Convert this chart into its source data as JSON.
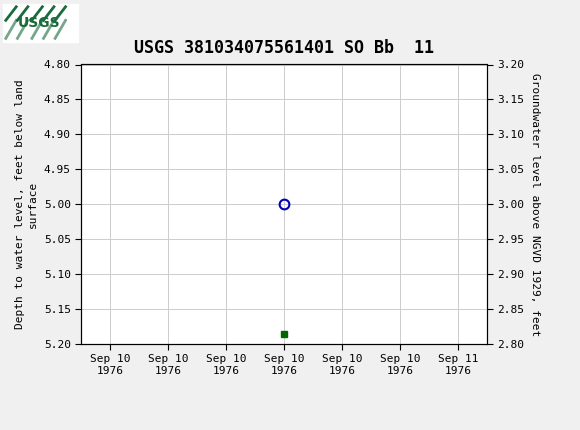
{
  "title": "USGS 381034075561401 SO Bb  11",
  "ylabel_left": "Depth to water level, feet below land\nsurface",
  "ylabel_right": "Groundwater level above NGVD 1929, feet",
  "ylim_left_top": 4.8,
  "ylim_left_bottom": 5.2,
  "ylim_right_top": 3.2,
  "ylim_right_bottom": 2.8,
  "yticks_left": [
    4.8,
    4.85,
    4.9,
    4.95,
    5.0,
    5.05,
    5.1,
    5.15,
    5.2
  ],
  "yticks_right": [
    3.2,
    3.15,
    3.1,
    3.05,
    3.0,
    2.95,
    2.9,
    2.85,
    2.8
  ],
  "data_x": [
    3.0
  ],
  "data_y_depth": [
    5.0
  ],
  "data_approved_x": [
    3.0
  ],
  "data_approved_y_depth": [
    5.185
  ],
  "marker_color_unapproved": "#0000bb",
  "marker_color_approved": "#006600",
  "header_color": "#1a6b3c",
  "bg_color": "#f0f0f0",
  "plot_bg_color": "#ffffff",
  "grid_color": "#cccccc",
  "axis_label_fontsize": 8,
  "title_fontsize": 12,
  "tick_fontsize": 8,
  "legend_fontsize": 9,
  "x_tick_labels": [
    "Sep 10\n1976",
    "Sep 10\n1976",
    "Sep 10\n1976",
    "Sep 10\n1976",
    "Sep 10\n1976",
    "Sep 10\n1976",
    "Sep 11\n1976"
  ],
  "x_tick_positions": [
    0,
    1,
    2,
    3,
    4,
    5,
    6
  ]
}
